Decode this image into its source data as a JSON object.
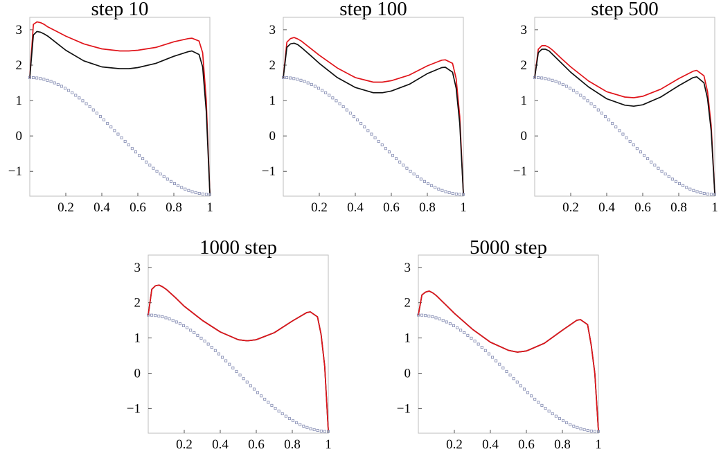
{
  "chart_data": [
    {
      "type": "line",
      "title": "step 10",
      "xlim": [
        0,
        1
      ],
      "ylim": [
        -1.7,
        3.35
      ],
      "xticks": [
        "0.2",
        "0.4",
        "0.6",
        "0.8",
        "1"
      ],
      "yticks": [
        "3",
        "2",
        "1",
        "0",
        "−1"
      ],
      "series": [
        {
          "role": "upper",
          "style": "line",
          "color": "#e0141a",
          "x": [
            0,
            0.02,
            0.04,
            0.06,
            0.08,
            0.1,
            0.15,
            0.2,
            0.3,
            0.4,
            0.5,
            0.55,
            0.6,
            0.7,
            0.8,
            0.88,
            0.9,
            0.94,
            0.96,
            0.98,
            1.0
          ],
          "y": [
            1.65,
            3.15,
            3.22,
            3.2,
            3.15,
            3.08,
            2.95,
            2.82,
            2.6,
            2.46,
            2.4,
            2.4,
            2.42,
            2.5,
            2.66,
            2.75,
            2.76,
            2.68,
            2.35,
            1.0,
            -1.62
          ]
        },
        {
          "role": "lower",
          "style": "line",
          "color": "#111111",
          "x": [
            0,
            0.02,
            0.04,
            0.06,
            0.08,
            0.1,
            0.15,
            0.2,
            0.3,
            0.4,
            0.5,
            0.55,
            0.6,
            0.7,
            0.8,
            0.88,
            0.9,
            0.94,
            0.96,
            0.98,
            1.0
          ],
          "y": [
            1.65,
            2.85,
            2.95,
            2.93,
            2.88,
            2.82,
            2.62,
            2.42,
            2.12,
            1.95,
            1.9,
            1.9,
            1.93,
            2.05,
            2.25,
            2.38,
            2.4,
            2.3,
            1.95,
            0.7,
            -1.62
          ]
        },
        {
          "role": "reference",
          "style": "dots",
          "color": "#8088b0",
          "fn": "cos",
          "amplitude": 1.65,
          "n": 52
        }
      ]
    },
    {
      "type": "line",
      "title": "step 100",
      "xlim": [
        0,
        1
      ],
      "ylim": [
        -1.7,
        3.35
      ],
      "xticks": [
        "0.2",
        "0.4",
        "0.6",
        "0.8",
        "1"
      ],
      "yticks": [
        "3",
        "2",
        "1",
        "0",
        "−1"
      ],
      "series": [
        {
          "role": "upper",
          "style": "line",
          "color": "#e0141a",
          "x": [
            0,
            0.02,
            0.04,
            0.06,
            0.08,
            0.1,
            0.15,
            0.2,
            0.3,
            0.4,
            0.5,
            0.55,
            0.6,
            0.7,
            0.8,
            0.88,
            0.9,
            0.94,
            0.96,
            0.98,
            1.0
          ],
          "y": [
            1.65,
            2.65,
            2.75,
            2.78,
            2.74,
            2.68,
            2.48,
            2.28,
            1.92,
            1.65,
            1.52,
            1.52,
            1.56,
            1.72,
            1.98,
            2.14,
            2.15,
            2.05,
            1.62,
            0.55,
            -1.62
          ]
        },
        {
          "role": "lower",
          "style": "line",
          "color": "#111111",
          "x": [
            0,
            0.02,
            0.04,
            0.06,
            0.08,
            0.1,
            0.15,
            0.2,
            0.3,
            0.4,
            0.5,
            0.55,
            0.6,
            0.7,
            0.8,
            0.88,
            0.9,
            0.94,
            0.96,
            0.98,
            1.0
          ],
          "y": [
            1.65,
            2.5,
            2.6,
            2.62,
            2.58,
            2.5,
            2.28,
            2.05,
            1.65,
            1.37,
            1.22,
            1.22,
            1.27,
            1.46,
            1.76,
            1.93,
            1.94,
            1.8,
            1.35,
            0.35,
            -1.62
          ]
        },
        {
          "role": "reference",
          "style": "dots",
          "color": "#8088b0",
          "fn": "cos",
          "amplitude": 1.65,
          "n": 52
        }
      ]
    },
    {
      "type": "line",
      "title": "step 500",
      "xlim": [
        0,
        1
      ],
      "ylim": [
        -1.7,
        3.35
      ],
      "xticks": [
        "0.2",
        "0.4",
        "0.6",
        "0.8",
        "1"
      ],
      "yticks": [
        "3",
        "2",
        "1",
        "0",
        "−1"
      ],
      "series": [
        {
          "role": "upper",
          "style": "line",
          "color": "#e0141a",
          "x": [
            0,
            0.02,
            0.04,
            0.06,
            0.08,
            0.1,
            0.15,
            0.2,
            0.3,
            0.4,
            0.5,
            0.55,
            0.6,
            0.7,
            0.8,
            0.88,
            0.9,
            0.94,
            0.96,
            0.98,
            1.0
          ],
          "y": [
            1.65,
            2.45,
            2.55,
            2.55,
            2.5,
            2.42,
            2.18,
            1.95,
            1.55,
            1.25,
            1.1,
            1.08,
            1.12,
            1.32,
            1.62,
            1.83,
            1.85,
            1.7,
            1.25,
            0.3,
            -1.62
          ]
        },
        {
          "role": "lower",
          "style": "line",
          "color": "#111111",
          "x": [
            0,
            0.02,
            0.04,
            0.06,
            0.08,
            0.1,
            0.15,
            0.2,
            0.3,
            0.4,
            0.5,
            0.55,
            0.6,
            0.7,
            0.8,
            0.88,
            0.9,
            0.94,
            0.96,
            0.98,
            1.0
          ],
          "y": [
            1.65,
            2.35,
            2.45,
            2.45,
            2.4,
            2.3,
            2.05,
            1.8,
            1.38,
            1.05,
            0.87,
            0.84,
            0.88,
            1.1,
            1.42,
            1.65,
            1.67,
            1.5,
            1.05,
            0.15,
            -1.62
          ]
        },
        {
          "role": "reference",
          "style": "dots",
          "color": "#8088b0",
          "fn": "cos",
          "amplitude": 1.65,
          "n": 52
        }
      ]
    },
    {
      "type": "line",
      "title": "1000 step",
      "xlim": [
        0,
        1
      ],
      "ylim": [
        -1.7,
        3.35
      ],
      "xticks": [
        "0.2",
        "0.4",
        "0.6",
        "0.8",
        "1"
      ],
      "yticks": [
        "3",
        "2",
        "1",
        "0",
        "−1"
      ],
      "series": [
        {
          "role": "lower",
          "style": "line",
          "color": "#111111",
          "x": [
            0,
            0.02,
            0.04,
            0.06,
            0.08,
            0.1,
            0.15,
            0.2,
            0.3,
            0.4,
            0.5,
            0.55,
            0.6,
            0.7,
            0.8,
            0.88,
            0.9,
            0.94,
            0.96,
            0.98,
            1.0
          ],
          "y": [
            1.65,
            2.38,
            2.48,
            2.5,
            2.45,
            2.38,
            2.15,
            1.9,
            1.5,
            1.17,
            0.95,
            0.92,
            0.95,
            1.15,
            1.48,
            1.72,
            1.74,
            1.6,
            1.1,
            0.2,
            -1.62
          ]
        },
        {
          "role": "upper",
          "style": "line",
          "color": "#e0141a",
          "x": [
            0,
            0.02,
            0.04,
            0.06,
            0.08,
            0.1,
            0.15,
            0.2,
            0.3,
            0.4,
            0.5,
            0.55,
            0.6,
            0.7,
            0.8,
            0.88,
            0.9,
            0.94,
            0.96,
            0.98,
            1.0
          ],
          "y": [
            1.65,
            2.38,
            2.48,
            2.5,
            2.45,
            2.38,
            2.15,
            1.9,
            1.5,
            1.17,
            0.95,
            0.92,
            0.95,
            1.15,
            1.48,
            1.72,
            1.74,
            1.6,
            1.1,
            0.2,
            -1.62
          ]
        },
        {
          "role": "reference",
          "style": "dots",
          "color": "#8088b0",
          "fn": "cos",
          "amplitude": 1.65,
          "n": 52
        }
      ]
    },
    {
      "type": "line",
      "title": "5000 step",
      "xlim": [
        0,
        1
      ],
      "ylim": [
        -1.7,
        3.35
      ],
      "xticks": [
        "0.2",
        "0.4",
        "0.6",
        "0.8",
        "1"
      ],
      "yticks": [
        "3",
        "2",
        "1",
        "0",
        "−1"
      ],
      "series": [
        {
          "role": "lower",
          "style": "line",
          "color": "#111111",
          "x": [
            0,
            0.02,
            0.04,
            0.06,
            0.08,
            0.1,
            0.15,
            0.2,
            0.3,
            0.4,
            0.5,
            0.55,
            0.6,
            0.7,
            0.8,
            0.88,
            0.9,
            0.94,
            0.96,
            0.98,
            1.0
          ],
          "y": [
            1.65,
            2.22,
            2.3,
            2.33,
            2.28,
            2.2,
            1.95,
            1.7,
            1.25,
            0.88,
            0.65,
            0.6,
            0.63,
            0.85,
            1.22,
            1.5,
            1.52,
            1.38,
            0.8,
            0.0,
            -1.62
          ]
        },
        {
          "role": "upper",
          "style": "line",
          "color": "#e0141a",
          "x": [
            0,
            0.02,
            0.04,
            0.06,
            0.08,
            0.1,
            0.15,
            0.2,
            0.3,
            0.4,
            0.5,
            0.55,
            0.6,
            0.7,
            0.8,
            0.88,
            0.9,
            0.94,
            0.96,
            0.98,
            1.0
          ],
          "y": [
            1.65,
            2.22,
            2.3,
            2.33,
            2.28,
            2.2,
            1.95,
            1.7,
            1.25,
            0.88,
            0.65,
            0.6,
            0.63,
            0.85,
            1.22,
            1.5,
            1.52,
            1.38,
            0.8,
            0.0,
            -1.62
          ]
        },
        {
          "role": "reference",
          "style": "dots",
          "color": "#8088b0",
          "fn": "cos",
          "amplitude": 1.65,
          "n": 52
        }
      ]
    }
  ]
}
